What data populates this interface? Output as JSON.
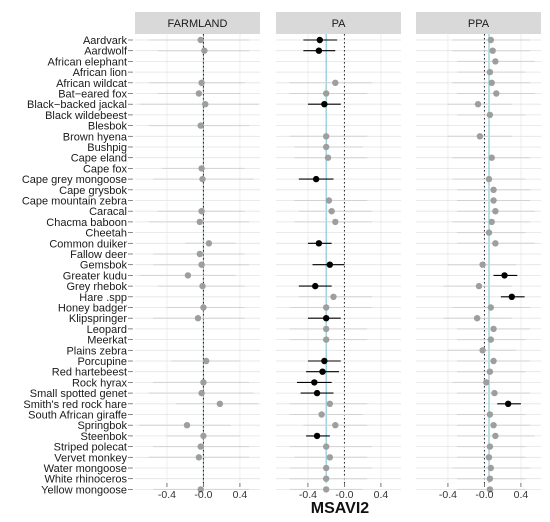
{
  "chart_data": {
    "type": "forest-plot",
    "xlabel": "MSAVI2",
    "xlim": [
      -0.75,
      0.62
    ],
    "xticks": [
      -0.4,
      -0.0,
      0.4
    ],
    "xtick_labels": [
      "-0.4",
      "-0.0",
      "0.4"
    ],
    "grid": true,
    "null_line": 0,
    "colors": {
      "significant": "#000000",
      "nonsignificant": "#9e9e9e",
      "panel_mean_line": "#7fc4d6",
      "strip_bg": "#d9d9d9"
    },
    "species": [
      "Aardvark",
      "Aardwolf",
      "African elephant",
      "African lion",
      "African wildcat",
      "Bat−eared fox",
      "Black−backed jackal",
      "Black wildebeest",
      "Blesbok",
      "Brown hyena",
      "Bushpig",
      "Cape eland",
      "Cape fox",
      "Cape grey mongoose",
      "Cape grysbok",
      "Cape mountain zebra",
      "Caracal",
      "Chacma baboon",
      "Cheetah",
      "Common duiker",
      "Fallow deer",
      "Gemsbok",
      "Greater kudu",
      "Grey rhebok",
      "Hare .spp",
      "Honey badger",
      "Klipspringer",
      "Leopard",
      "Meerkat",
      "Plains zebra",
      "Porcupine",
      "Red hartebeest",
      "Rock hyrax",
      "Small spotted genet",
      "Smith's red rock hare",
      "South African giraffe",
      "Springbok",
      "Steenbok",
      "Striped polecat",
      "Vervet monkey",
      "Water mongoose",
      "White rhinoceros",
      "Yellow mongoose"
    ],
    "panels": [
      {
        "name": "FARMLAND",
        "mean": 0.0,
        "est": [
          -0.03,
          0.01,
          null,
          null,
          -0.02,
          -0.05,
          0.02,
          null,
          -0.03,
          null,
          null,
          null,
          -0.02,
          -0.01,
          null,
          null,
          -0.02,
          -0.04,
          null,
          0.06,
          -0.04,
          -0.02,
          -0.17,
          -0.01,
          null,
          0.0,
          -0.06,
          null,
          null,
          null,
          0.03,
          null,
          0.0,
          -0.02,
          0.18,
          null,
          -0.18,
          0.0,
          -0.03,
          -0.05,
          null,
          null,
          -0.03
        ],
        "lo": [
          -0.6,
          -0.5,
          null,
          null,
          -0.6,
          -0.5,
          -0.7,
          null,
          -0.6,
          null,
          null,
          null,
          -0.45,
          -0.55,
          null,
          null,
          -0.5,
          -0.6,
          null,
          -0.2,
          -0.55,
          -0.55,
          -0.7,
          -0.5,
          null,
          -0.4,
          -0.55,
          null,
          null,
          null,
          -0.35,
          null,
          -0.55,
          -0.6,
          -0.3,
          null,
          -0.7,
          -0.4,
          -0.55,
          -0.6,
          null,
          null,
          -0.55
        ],
        "hi": [
          0.5,
          0.5,
          null,
          null,
          0.45,
          0.4,
          0.6,
          null,
          0.5,
          null,
          null,
          null,
          0.45,
          0.55,
          null,
          null,
          0.45,
          0.5,
          null,
          0.35,
          0.45,
          0.5,
          0.35,
          0.45,
          null,
          0.45,
          0.45,
          null,
          null,
          null,
          0.4,
          null,
          0.5,
          0.55,
          0.6,
          null,
          0.3,
          0.4,
          0.5,
          0.5,
          null,
          null,
          0.5
        ],
        "sig": [
          false,
          false,
          false,
          false,
          false,
          false,
          false,
          false,
          false,
          false,
          false,
          false,
          false,
          false,
          false,
          false,
          false,
          false,
          false,
          false,
          false,
          false,
          false,
          false,
          false,
          false,
          false,
          false,
          false,
          false,
          false,
          false,
          false,
          false,
          false,
          false,
          false,
          false,
          false,
          false,
          false,
          false,
          false
        ]
      },
      {
        "name": "PA",
        "mean": -0.2,
        "est": [
          -0.27,
          -0.28,
          null,
          null,
          -0.1,
          -0.2,
          -0.22,
          null,
          null,
          -0.2,
          -0.2,
          -0.18,
          null,
          -0.31,
          null,
          -0.17,
          -0.14,
          -0.1,
          null,
          -0.28,
          null,
          -0.16,
          null,
          -0.32,
          -0.12,
          -0.2,
          -0.2,
          -0.2,
          -0.2,
          null,
          -0.22,
          -0.24,
          -0.33,
          -0.3,
          -0.16,
          -0.25,
          -0.1,
          -0.3,
          -0.2,
          -0.16,
          -0.2,
          -0.2,
          -0.2
        ],
        "lo": [
          -0.45,
          -0.45,
          null,
          null,
          -0.6,
          -0.6,
          -0.4,
          null,
          null,
          -0.6,
          -0.55,
          -0.55,
          null,
          -0.5,
          null,
          -0.55,
          -0.5,
          -0.55,
          null,
          -0.4,
          null,
          -0.35,
          null,
          -0.5,
          -0.5,
          -0.6,
          -0.4,
          -0.6,
          -0.6,
          null,
          -0.4,
          -0.42,
          -0.52,
          -0.48,
          -0.6,
          -0.6,
          -0.45,
          -0.42,
          -0.6,
          -0.55,
          -0.6,
          -0.6,
          -0.6
        ],
        "hi": [
          -0.08,
          -0.1,
          null,
          null,
          0.3,
          0.25,
          -0.04,
          null,
          null,
          0.25,
          0.2,
          0.25,
          null,
          -0.12,
          null,
          0.25,
          0.3,
          0.3,
          null,
          -0.14,
          null,
          0.0,
          null,
          -0.14,
          0.3,
          0.3,
          -0.04,
          0.25,
          0.25,
          null,
          -0.04,
          -0.06,
          -0.14,
          -0.12,
          0.25,
          0.2,
          0.25,
          -0.16,
          0.3,
          0.25,
          0.3,
          0.25,
          0.2
        ],
        "sig": [
          true,
          true,
          false,
          false,
          false,
          false,
          true,
          false,
          false,
          false,
          false,
          false,
          false,
          true,
          false,
          false,
          false,
          false,
          false,
          true,
          false,
          true,
          false,
          true,
          false,
          false,
          true,
          false,
          false,
          false,
          true,
          true,
          true,
          true,
          false,
          false,
          false,
          true,
          false,
          false,
          false,
          false,
          false
        ]
      },
      {
        "name": "PPA",
        "mean": 0.05,
        "est": [
          0.07,
          0.09,
          0.12,
          0.06,
          0.08,
          0.13,
          -0.07,
          0.06,
          null,
          -0.05,
          null,
          0.08,
          null,
          0.05,
          0.1,
          0.1,
          0.12,
          0.08,
          0.05,
          0.12,
          null,
          -0.02,
          0.22,
          -0.06,
          0.3,
          0.07,
          -0.08,
          0.1,
          0.07,
          -0.02,
          0.1,
          0.06,
          0.02,
          0.11,
          0.26,
          0.06,
          0.1,
          0.12,
          0.06,
          0.05,
          0.07,
          0.06,
          0.06
        ],
        "lo": [
          -0.35,
          -0.35,
          -0.3,
          -0.3,
          -0.35,
          -0.3,
          -0.4,
          -0.3,
          null,
          -0.4,
          null,
          -0.35,
          null,
          -0.35,
          -0.3,
          -0.3,
          -0.3,
          -0.35,
          -0.3,
          -0.3,
          null,
          -0.4,
          0.1,
          -0.45,
          0.18,
          -0.35,
          -0.45,
          -0.3,
          -0.3,
          -0.4,
          -0.3,
          -0.3,
          -0.35,
          -0.3,
          0.14,
          -0.3,
          -0.3,
          -0.3,
          -0.3,
          -0.3,
          -0.35,
          -0.3,
          -0.3
        ],
        "hi": [
          0.5,
          0.5,
          0.55,
          0.45,
          0.5,
          0.55,
          0.3,
          0.45,
          null,
          0.3,
          null,
          0.5,
          null,
          0.45,
          0.5,
          0.5,
          0.55,
          0.5,
          0.45,
          0.55,
          null,
          0.35,
          0.36,
          0.3,
          0.44,
          0.5,
          0.3,
          0.5,
          0.45,
          0.35,
          0.5,
          0.45,
          0.4,
          0.5,
          0.4,
          0.45,
          0.5,
          0.55,
          0.45,
          0.45,
          0.5,
          0.45,
          0.45
        ],
        "sig": [
          false,
          false,
          false,
          false,
          false,
          false,
          false,
          false,
          false,
          false,
          false,
          false,
          false,
          false,
          false,
          false,
          false,
          false,
          false,
          false,
          false,
          false,
          true,
          false,
          true,
          false,
          false,
          false,
          false,
          false,
          false,
          false,
          false,
          false,
          true,
          false,
          false,
          false,
          false,
          false,
          false,
          false,
          false
        ]
      }
    ]
  }
}
